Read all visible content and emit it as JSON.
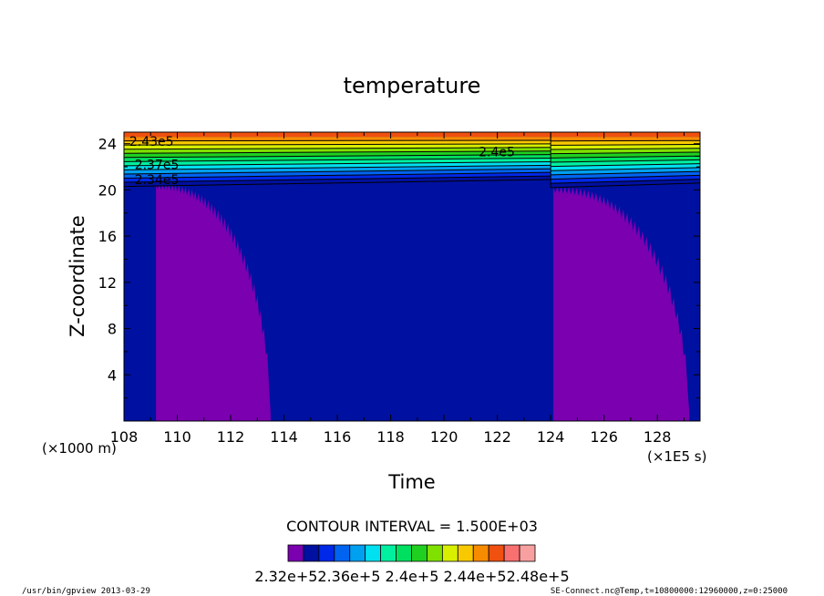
{
  "chart_data": {
    "type": "heatmap",
    "title": "temperature",
    "xlabel": "Time",
    "ylabel": "Z-coordinate",
    "x_unit": "(×1E5 s)",
    "y_unit": "(×1000 m)",
    "xlim": [
      108,
      129.6
    ],
    "ylim": [
      0,
      25
    ],
    "x_ticks": [
      "108",
      "110",
      "112",
      "114",
      "116",
      "118",
      "120",
      "122",
      "124",
      "126",
      "128"
    ],
    "y_ticks": [
      "4",
      "8",
      "12",
      "16",
      "20",
      "24"
    ],
    "contour_interval_label": "CONTOUR INTERVAL = 1.500E+03",
    "contour_labels": [
      {
        "text": "2.43e5",
        "x": 108.2,
        "z": 24.2
      },
      {
        "text": "2.4e5",
        "x": 121.3,
        "z": 23.3
      },
      {
        "text": "2.37e5",
        "x": 108.4,
        "z": 22.2
      },
      {
        "text": "2.34e5",
        "x": 108.4,
        "z": 20.9
      }
    ],
    "colorbar_levels": [
      "#7a00b0",
      "#0010a0",
      "#0028e8",
      "#0064f0",
      "#00a0f0",
      "#00e0f0",
      "#00f0a0",
      "#00e060",
      "#20d020",
      "#80e000",
      "#d8f000",
      "#f8c800",
      "#f88c00",
      "#f05010",
      "#f87070",
      "#f8a0a0"
    ],
    "colorbar_labels": "2.32e+52.36e+5 2.4e+5 2.44e+52.48e+5",
    "regimes": [
      {
        "name": "purple-region-1",
        "x_start": 109.2,
        "x_end": 113.5,
        "z_top": 20.3
      },
      {
        "name": "purple-region-2",
        "x_start": 124.1,
        "x_end": 129.2,
        "z_top": 20.0
      }
    ],
    "reset_time": 124
  },
  "footer": {
    "left": "/usr/bin/gpview  2013-03-29",
    "right": "SE-Connect.nc@Temp,t=10800000:12960000,z=0:25000"
  },
  "colors": {
    "background_blue": "#0010a0",
    "purple": "#7a00b0"
  }
}
